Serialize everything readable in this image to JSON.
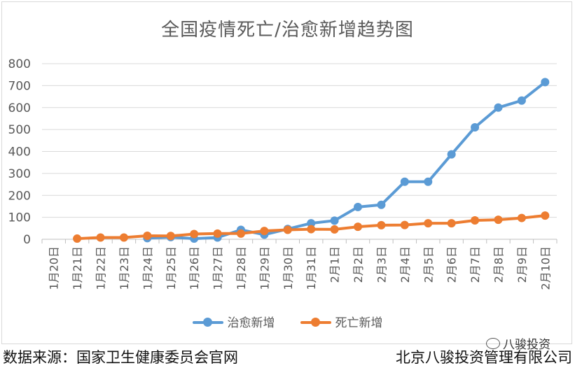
{
  "chart_data": {
    "type": "line",
    "title": "全国疫情死亡/治愈新增趋势图",
    "categories": [
      "1月20日",
      "1月21日",
      "1月22日",
      "1月23日",
      "1月24日",
      "1月25日",
      "1月26日",
      "1月27日",
      "1月28日",
      "1月29日",
      "1月30日",
      "1月31日",
      "2月1日",
      "2月2日",
      "2月3日",
      "2月4日",
      "2月5日",
      "2月6日",
      "2月7日",
      "2月8日",
      "2月9日",
      "2月10日"
    ],
    "series": [
      {
        "name": "治愈新增",
        "color": "#5b9bd5",
        "values": [
          null,
          null,
          null,
          null,
          5,
          10,
          3,
          8,
          43,
          21,
          47,
          73,
          85,
          147,
          157,
          262,
          262,
          387,
          510,
          600,
          632,
          716
        ]
      },
      {
        "name": "死亡新增",
        "color": "#ed7d31",
        "values": [
          null,
          3,
          8,
          8,
          16,
          15,
          24,
          26,
          26,
          38,
          43,
          46,
          45,
          57,
          64,
          65,
          73,
          73,
          86,
          89,
          97,
          108
        ]
      }
    ],
    "ylim": [
      0,
      800
    ],
    "yticks": [
      0,
      100,
      200,
      300,
      400,
      500,
      600,
      700,
      800
    ],
    "grid": true,
    "legend_position": "bottom"
  },
  "footer": {
    "source": "数据来源：国家卫生健康委员会官网",
    "company": "北京八骏投资管理有限公司"
  },
  "watermark": {
    "text": "八骏投资"
  }
}
